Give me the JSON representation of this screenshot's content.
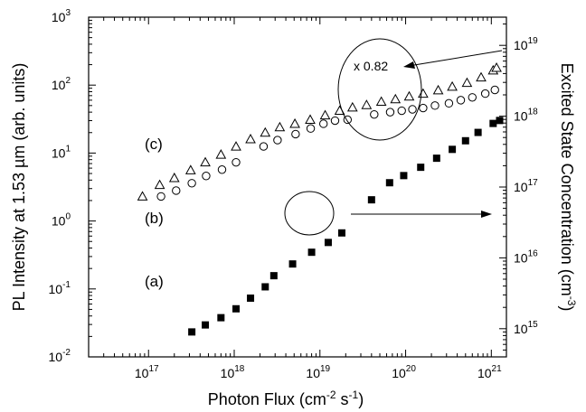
{
  "chart_data": {
    "type": "scatter",
    "xlabel": "Photon Flux (cm",
    "xlabel_sup1": "-2",
    "xlabel_mid": " s",
    "xlabel_sup2": "-1",
    "xlabel_end": ")",
    "ylabel": "PL Intensity at 1.53 µm (arb. units)",
    "ylabel_right": "Excited State Concentration (cm",
    "ylabel_right_sup": "-3",
    "ylabel_right_end": ")",
    "x_scale": "log",
    "y_scale": "log",
    "xlim": [
      2e+16,
      1.5e+21
    ],
    "ylim": [
      0.01,
      1000
    ],
    "ylim_right": [
      400000000000000.0,
      2.5e+19
    ],
    "x_ticks": [
      {
        "base": "10",
        "exp": "17",
        "value": 1e+17
      },
      {
        "base": "10",
        "exp": "18",
        "value": 1e+18
      },
      {
        "base": "10",
        "exp": "19",
        "value": 1e+19
      },
      {
        "base": "10",
        "exp": "20",
        "value": 1e+20
      },
      {
        "base": "10",
        "exp": "21",
        "value": 1e+21
      }
    ],
    "y_ticks": [
      {
        "label": "10",
        "exp": "-2",
        "value": 0.01
      },
      {
        "label": "10",
        "exp": "-1",
        "value": 0.1
      },
      {
        "label": "10",
        "exp": "0",
        "value": 1
      },
      {
        "label": "10",
        "exp": "1",
        "value": 10
      },
      {
        "label": "10",
        "exp": "2",
        "value": 100
      },
      {
        "label": "10",
        "exp": "3",
        "value": 1000
      }
    ],
    "y_right_ticks": [
      {
        "base": "10",
        "exp": "15",
        "value": 1000000000000000.0
      },
      {
        "base": "10",
        "exp": "16",
        "value": 1e+16
      },
      {
        "base": "10",
        "exp": "17",
        "value": 1e+17
      },
      {
        "base": "10",
        "exp": "18",
        "value": 1e+18
      },
      {
        "base": "10",
        "exp": "19",
        "value": 1e+19
      }
    ],
    "series": [
      {
        "label": "(a)",
        "marker": "filled-square",
        "axis": "right",
        "x": [
          3.2e+17,
          4.6e+17,
          7e+17,
          1.05e+18,
          1.55e+18,
          2.3e+18,
          2.9e+18,
          4.8e+18,
          8e+18,
          1.25e+19,
          1.8e+19,
          4e+19,
          6.5e+19,
          9.5e+19,
          1.5e+20,
          2.3e+20,
          3.5e+20,
          5e+20,
          7e+20,
          1.05e+21,
          1.25e+21
        ],
        "y": [
          900000000000000.0,
          1130000000000000.0,
          1430000000000000.0,
          1910000000000000.0,
          2700000000000000.0,
          3900000000000000.0,
          5600000000000000.0,
          8200000000000000.0,
          1.2e+16,
          1.65e+16,
          2.25e+16,
          6.6e+16,
          1.15e+17,
          1.45e+17,
          1.9e+17,
          2.55e+17,
          3.4e+17,
          4.5e+17,
          5.9e+17,
          7.9e+17,
          8.7e+17
        ]
      },
      {
        "label": "(b)",
        "marker": "open-circle",
        "axis": "left",
        "x": [
          1.4e+17,
          2.1e+17,
          3.2e+17,
          4.7e+17,
          7.2e+17,
          1.05e+18,
          2.2e+18,
          3.2e+18,
          5.2e+18,
          7.8e+18,
          1.1e+19,
          1.5e+19,
          2.1e+19,
          4.3e+19,
          6.6e+19,
          9e+19,
          1.2e+20,
          1.6e+20,
          2.2e+20,
          3.2e+20,
          4.4e+20,
          6e+20,
          8.5e+20,
          1.1e+21
        ],
        "y": [
          2.3,
          2.8,
          3.6,
          4.6,
          5.7,
          7.3,
          12.5,
          15.5,
          19,
          23,
          27,
          30,
          31,
          37,
          40,
          42,
          44,
          46,
          50,
          54,
          60,
          66,
          75,
          85
        ]
      },
      {
        "label": "(c)",
        "marker": "open-triangle",
        "axis": "left",
        "x": [
          8.5e+16,
          1.35e+17,
          2e+17,
          3.1e+17,
          4.6e+17,
          7e+17,
          1.05e+18,
          1.55e+18,
          2.3e+18,
          3.4e+18,
          5.1e+18,
          7.7e+18,
          1.15e+19,
          1.7e+19,
          2.4e+19,
          3.5e+19,
          5.2e+19,
          7.6e+19,
          1.1e+20,
          1.6e+20,
          2.4e+20,
          3.5e+20,
          5.2e+20,
          7.6e+20,
          1.05e+21,
          1.15e+21
        ],
        "y": [
          2.3,
          3.4,
          4.3,
          5.6,
          7.3,
          9.5,
          12.5,
          16,
          20,
          24,
          27,
          31,
          36,
          42,
          47,
          51,
          57,
          62,
          68,
          75,
          84,
          95,
          108,
          130,
          165,
          180
        ]
      }
    ],
    "annotations": {
      "c_label": "(c)",
      "b_label": "(b)",
      "a_label": "(a)",
      "scale_label": "x 0.82"
    }
  }
}
